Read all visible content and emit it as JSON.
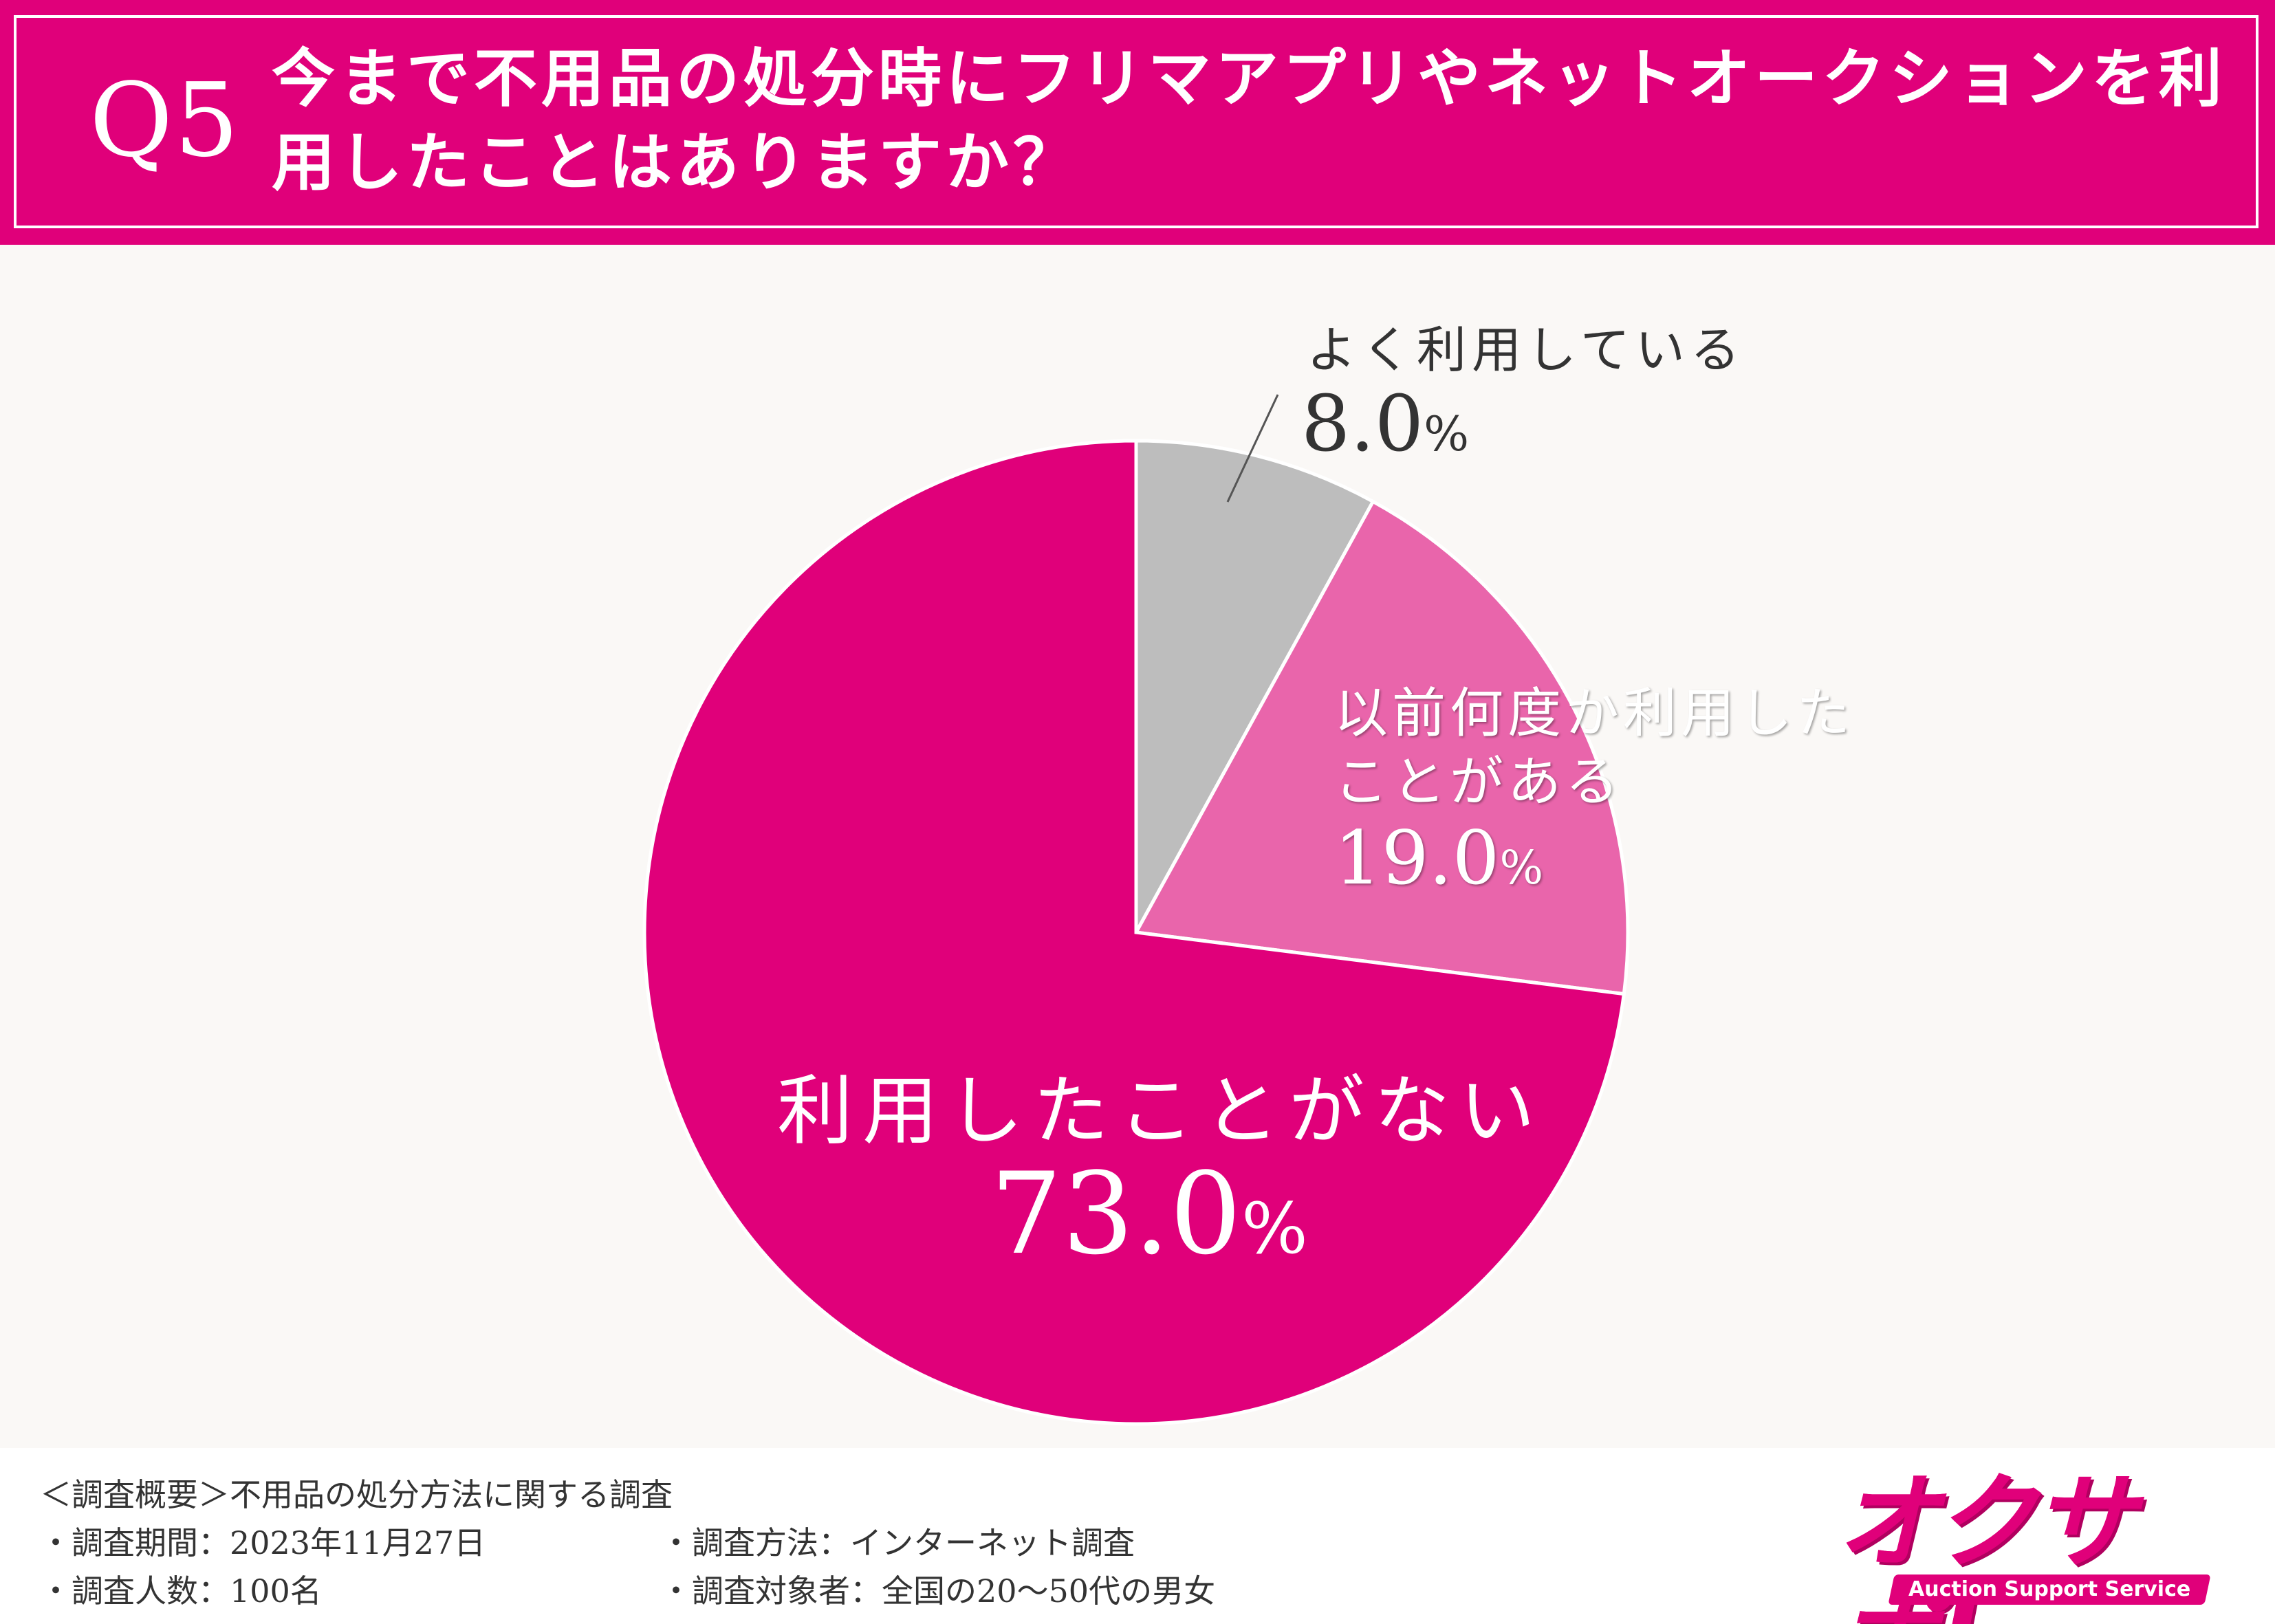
{
  "header": {
    "q_label": "Q5",
    "question": "今まで不用品の処分時にフリマアプリやネットオークションを利用したことはありますか？"
  },
  "colors": {
    "brand": "#e0007a",
    "slice_often": "#bdbdbd",
    "slice_before": "#e965ab",
    "slice_never": "#e0007a",
    "background": "#faf8f6"
  },
  "chart_data": {
    "type": "pie",
    "title": "今まで不用品の処分時にフリマアプリやネットオークションを利用したことはありますか？",
    "start_angle": "12 o'clock",
    "direction": "clockwise",
    "slices": [
      {
        "label": "よく利用している",
        "value": 8.0,
        "display": "8.0",
        "unit": "%"
      },
      {
        "label": "以前何度か利用したことがある",
        "value": 19.0,
        "display": "19.0",
        "unit": "%"
      },
      {
        "label": "利用したことがない",
        "value": 73.0,
        "display": "73.0",
        "unit": "%"
      }
    ]
  },
  "labels": {
    "often": "よく利用している",
    "before": "以前何度か利用したことがある",
    "never": "利用したことがない"
  },
  "footer": {
    "summary": "＜調査概要＞不用品の処分方法に関する調査",
    "period": "・調査期間：2023年11月27日",
    "count": "・調査人数：100名",
    "method": "・調査方法：インターネット調査",
    "target": "・調査対象者：全国の20〜50代の男女"
  },
  "logo": {
    "main": "オクサポ!",
    "sub": "Auction Support Service"
  }
}
